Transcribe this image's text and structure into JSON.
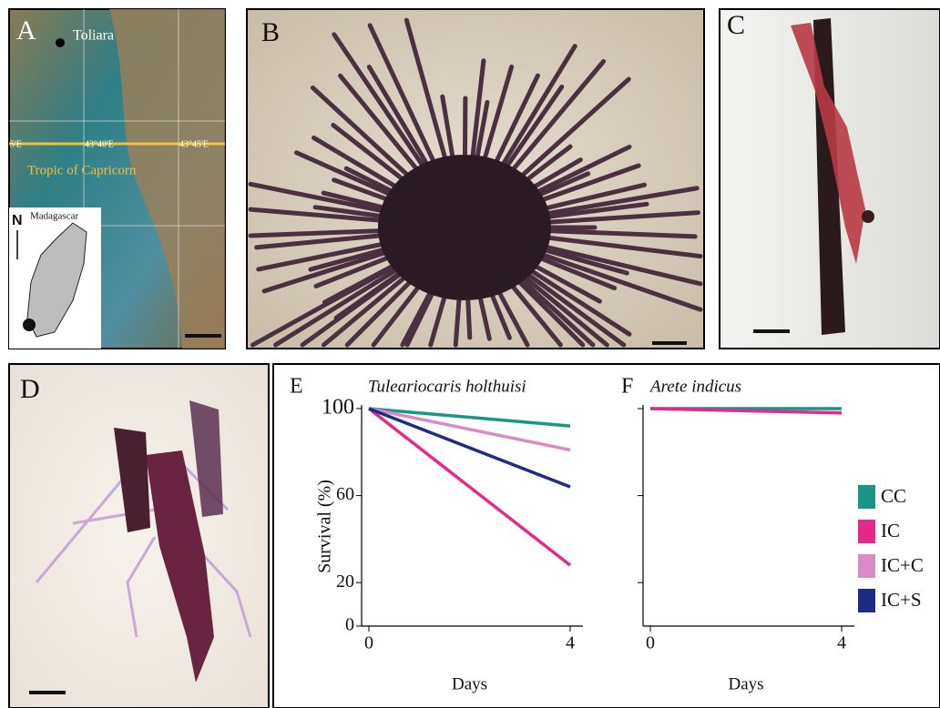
{
  "panels": {
    "A": {
      "label": "A",
      "city": "Toliara",
      "tropic": "Tropic of Capricorn",
      "lon1": "5'E",
      "lon2": "43°40'E",
      "lon3": "43°45'E",
      "inset": "Madagascar",
      "north": "N"
    },
    "B": {
      "label": "B"
    },
    "C": {
      "label": "C"
    },
    "D": {
      "label": "D"
    }
  },
  "chart_data": [
    {
      "type": "line",
      "panel": "E",
      "title": "Tuleariocaris holthuisi",
      "xlabel": "Days",
      "ylabel": "Survival (%)",
      "x": [
        0,
        4
      ],
      "xlim": [
        0,
        4
      ],
      "xticks": [
        0,
        4
      ],
      "ylim": [
        0,
        100
      ],
      "yticks": [
        0,
        20,
        60,
        100
      ],
      "ytick_labels": true,
      "legend": false,
      "series": [
        {
          "name": "CC",
          "color": "#1a9686",
          "values": [
            100,
            92
          ]
        },
        {
          "name": "IC",
          "color": "#e6288a",
          "values": [
            100,
            28
          ]
        },
        {
          "name": "IC+C",
          "color": "#d98bc6",
          "values": [
            100,
            81
          ]
        },
        {
          "name": "IC+S",
          "color": "#1f2a86",
          "values": [
            100,
            64
          ]
        }
      ]
    },
    {
      "type": "line",
      "panel": "F",
      "title": "Arete indicus",
      "xlabel": "Days",
      "x": [
        0,
        4
      ],
      "xlim": [
        0,
        4
      ],
      "xticks": [
        0,
        4
      ],
      "ylim": [
        0,
        100
      ],
      "yticks": [
        20,
        60,
        100
      ],
      "ytick_labels": false,
      "legend": "right",
      "series": [
        {
          "name": "CC",
          "color": "#1a9686",
          "values": [
            100,
            100
          ]
        },
        {
          "name": "IC",
          "color": "#e6288a",
          "values": [
            100,
            98
          ]
        }
      ]
    }
  ]
}
